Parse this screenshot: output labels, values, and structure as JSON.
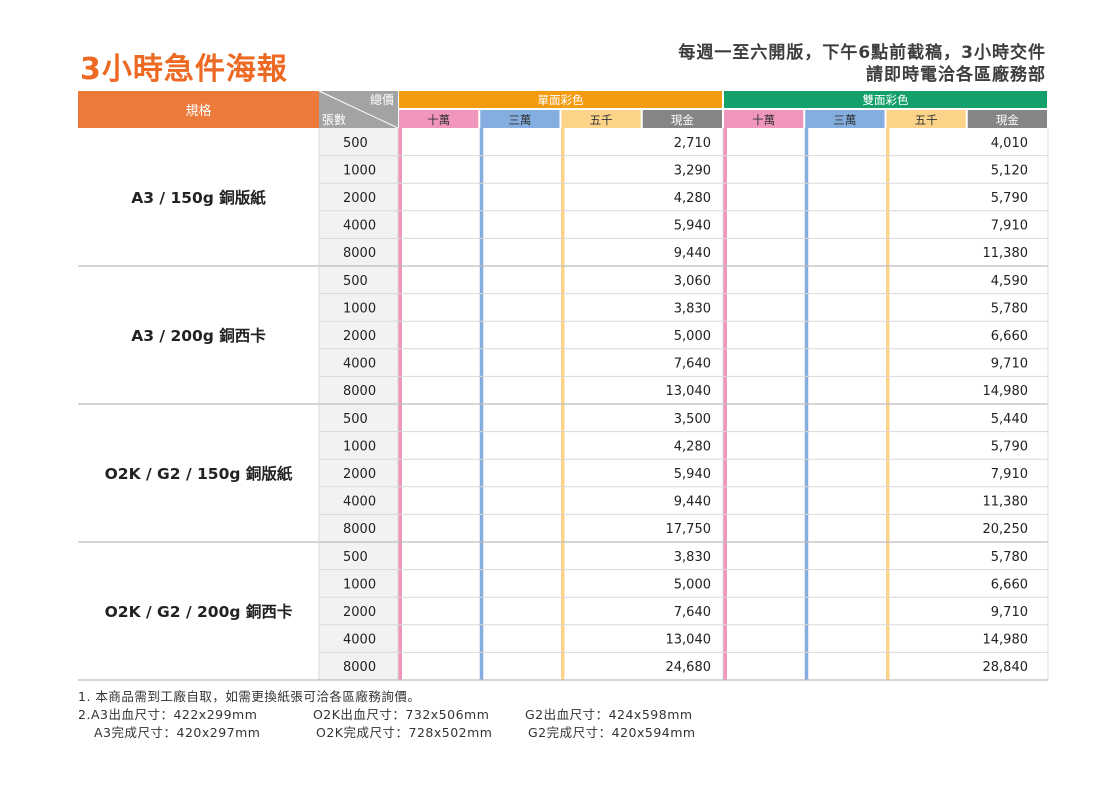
{
  "title": "3小時急件海報",
  "notice": [
    "每週一至六開版，下午6點前截稿，3小時交件",
    "請即時電洽各區廠務部"
  ],
  "table": {
    "spec_header": "規格",
    "total_price_label": "總價",
    "qty_label": "張數",
    "groups": [
      {
        "label": "單面彩色",
        "color": "#f39c12"
      },
      {
        "label": "雙面彩色",
        "color": "#14a06a"
      }
    ],
    "columns": [
      {
        "label": "十萬",
        "color": "#f096bd"
      },
      {
        "label": "三萬",
        "color": "#84aee0"
      },
      {
        "label": "五千",
        "color": "#fbd48a"
      },
      {
        "label": "現金",
        "color": "#858585"
      },
      {
        "label": "十萬",
        "color": "#f096bd"
      },
      {
        "label": "三萬",
        "color": "#84aee0"
      },
      {
        "label": "五千",
        "color": "#fbd48a"
      },
      {
        "label": "現金",
        "color": "#858585"
      }
    ],
    "spec_header_color": "#ec7a3a",
    "sections": [
      {
        "spec": "A3 / 150g 銅版紙",
        "rows": [
          {
            "qty": "500",
            "single_cash": "2,710",
            "double_cash": "4,010"
          },
          {
            "qty": "1000",
            "single_cash": "3,290",
            "double_cash": "5,120"
          },
          {
            "qty": "2000",
            "single_cash": "4,280",
            "double_cash": "5,790"
          },
          {
            "qty": "4000",
            "single_cash": "5,940",
            "double_cash": "7,910"
          },
          {
            "qty": "8000",
            "single_cash": "9,440",
            "double_cash": "11,380"
          }
        ]
      },
      {
        "spec": "A3 / 200g 銅西卡",
        "rows": [
          {
            "qty": "500",
            "single_cash": "3,060",
            "double_cash": "4,590"
          },
          {
            "qty": "1000",
            "single_cash": "3,830",
            "double_cash": "5,780"
          },
          {
            "qty": "2000",
            "single_cash": "5,000",
            "double_cash": "6,660"
          },
          {
            "qty": "4000",
            "single_cash": "7,640",
            "double_cash": "9,710"
          },
          {
            "qty": "8000",
            "single_cash": "13,040",
            "double_cash": "14,980"
          }
        ]
      },
      {
        "spec": "O2K / G2 / 150g 銅版紙",
        "rows": [
          {
            "qty": "500",
            "single_cash": "3,500",
            "double_cash": "5,440"
          },
          {
            "qty": "1000",
            "single_cash": "4,280",
            "double_cash": "5,790"
          },
          {
            "qty": "2000",
            "single_cash": "5,940",
            "double_cash": "7,910"
          },
          {
            "qty": "4000",
            "single_cash": "9,440",
            "double_cash": "11,380"
          },
          {
            "qty": "8000",
            "single_cash": "17,750",
            "double_cash": "20,250"
          }
        ]
      },
      {
        "spec": "O2K / G2 / 200g 銅西卡",
        "rows": [
          {
            "qty": "500",
            "single_cash": "3,830",
            "double_cash": "5,780"
          },
          {
            "qty": "1000",
            "single_cash": "5,000",
            "double_cash": "6,660"
          },
          {
            "qty": "2000",
            "single_cash": "7,640",
            "double_cash": "9,710"
          },
          {
            "qty": "4000",
            "single_cash": "13,040",
            "double_cash": "14,980"
          },
          {
            "qty": "8000",
            "single_cash": "24,680",
            "double_cash": "28,840"
          }
        ]
      }
    ]
  },
  "footnotes": {
    "note1": "1. 本商品需到工廠自取，如需更換紙張可洽各區廠務詢價。",
    "note2_prefix": "2. ",
    "a3_bleed": "A3出血尺寸：422x299mm",
    "a3_finish": "A3完成尺寸：420x297mm",
    "o2k_bleed": "O2K出血尺寸：732x506mm",
    "o2k_finish": "O2K完成尺寸：728x502mm",
    "g2_bleed": "G2出血尺寸：424x598mm",
    "g2_finish": "G2完成尺寸：420x594mm"
  }
}
